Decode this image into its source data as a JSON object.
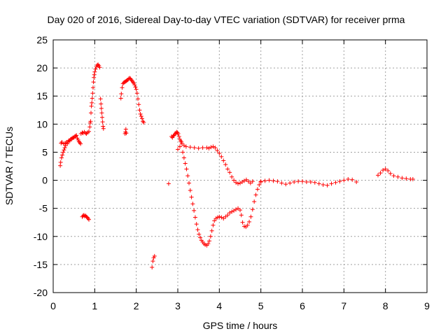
{
  "chart_data": {
    "type": "scatter",
    "title": "Day 020 of 2016, Sidereal Day-to-day VTEC variation (SDTVAR) for receiver prma",
    "xlabel": "GPS time / hours",
    "ylabel": "SDTVAR / TECUs",
    "xlim": [
      0,
      9
    ],
    "ylim": [
      -20,
      25
    ],
    "xticks": [
      0,
      1,
      2,
      3,
      4,
      5,
      6,
      7,
      8,
      9
    ],
    "yticks": [
      -20,
      -15,
      -10,
      -5,
      0,
      5,
      10,
      15,
      20,
      25
    ],
    "grid": true,
    "marker": "plus",
    "color": "#ff0000",
    "series": [
      {
        "points": [
          [
            0.17,
            2.6
          ],
          [
            0.18,
            3.2
          ],
          [
            0.19,
            6.6
          ],
          [
            0.2,
            4.0
          ],
          [
            0.21,
            6.8
          ],
          [
            0.22,
            4.5
          ],
          [
            0.24,
            5.0
          ],
          [
            0.25,
            6.5
          ],
          [
            0.26,
            5.4
          ],
          [
            0.28,
            5.8
          ],
          [
            0.29,
            6.6
          ],
          [
            0.3,
            6.2
          ],
          [
            0.32,
            6.8
          ],
          [
            0.34,
            6.5
          ],
          [
            0.36,
            6.9
          ],
          [
            0.38,
            7.1
          ],
          [
            0.4,
            7.0
          ],
          [
            0.42,
            7.3
          ],
          [
            0.44,
            7.4
          ],
          [
            0.46,
            7.5
          ],
          [
            0.48,
            7.6
          ],
          [
            0.5,
            7.6
          ],
          [
            0.52,
            7.8
          ],
          [
            0.54,
            7.9
          ],
          [
            0.56,
            8.0
          ],
          [
            0.58,
            7.5
          ],
          [
            0.6,
            7.2
          ],
          [
            0.62,
            6.9
          ],
          [
            0.64,
            6.7
          ],
          [
            0.66,
            6.5
          ],
          [
            0.67,
            8.3
          ],
          [
            0.7,
            8.5
          ],
          [
            0.72,
            8.4
          ],
          [
            0.75,
            8.6
          ],
          [
            0.78,
            8.4
          ],
          [
            0.8,
            8.3
          ],
          [
            0.83,
            8.5
          ],
          [
            0.86,
            8.7
          ],
          [
            0.7,
            -6.5
          ],
          [
            0.72,
            -6.3
          ],
          [
            0.74,
            -6.2
          ],
          [
            0.76,
            -6.4
          ],
          [
            0.78,
            -6.3
          ],
          [
            0.8,
            -6.5
          ],
          [
            0.82,
            -6.6
          ],
          [
            0.84,
            -6.8
          ],
          [
            0.86,
            -7.0
          ],
          [
            0.88,
            9.5
          ],
          [
            0.89,
            10.2
          ],
          [
            0.9,
            10.5
          ],
          [
            0.91,
            12.0
          ],
          [
            0.92,
            13.2
          ],
          [
            0.93,
            13.8
          ],
          [
            0.94,
            14.6
          ],
          [
            0.95,
            15.5
          ],
          [
            0.96,
            16.5
          ],
          [
            0.97,
            17.5
          ],
          [
            0.98,
            18.3
          ],
          [
            0.99,
            18.8
          ],
          [
            1.0,
            19.3
          ],
          [
            1.02,
            19.8
          ],
          [
            1.04,
            20.2
          ],
          [
            1.06,
            20.5
          ],
          [
            1.08,
            20.6
          ],
          [
            1.1,
            20.4
          ],
          [
            1.12,
            20.1
          ],
          [
            1.14,
            14.5
          ],
          [
            1.15,
            13.6
          ],
          [
            1.16,
            12.8
          ],
          [
            1.17,
            12.0
          ],
          [
            1.18,
            11.2
          ],
          [
            1.19,
            10.4
          ],
          [
            1.2,
            9.6
          ],
          [
            1.21,
            9.2
          ],
          [
            1.63,
            14.6
          ],
          [
            1.64,
            15.4
          ],
          [
            1.66,
            16.5
          ],
          [
            1.68,
            17.2
          ],
          [
            1.7,
            17.4
          ],
          [
            1.72,
            17.5
          ],
          [
            1.74,
            17.6
          ],
          [
            1.76,
            17.7
          ],
          [
            1.78,
            17.8
          ],
          [
            1.8,
            17.9
          ],
          [
            1.82,
            18.1
          ],
          [
            1.84,
            18.2
          ],
          [
            1.86,
            18.1
          ],
          [
            1.88,
            17.9
          ],
          [
            1.9,
            17.7
          ],
          [
            1.92,
            17.5
          ],
          [
            1.94,
            17.3
          ],
          [
            1.96,
            17.0
          ],
          [
            1.98,
            16.6
          ],
          [
            2.0,
            16.2
          ],
          [
            2.02,
            15.5
          ],
          [
            2.04,
            14.5
          ],
          [
            2.06,
            13.5
          ],
          [
            2.08,
            12.5
          ],
          [
            2.1,
            11.8
          ],
          [
            2.12,
            11.4
          ],
          [
            2.14,
            11.0
          ],
          [
            2.16,
            10.5
          ],
          [
            2.18,
            10.3
          ],
          [
            1.73,
            8.3
          ],
          [
            1.74,
            8.6
          ],
          [
            1.75,
            9.1
          ],
          [
            1.76,
            8.4
          ],
          [
            2.38,
            -15.5
          ],
          [
            2.4,
            -14.4
          ],
          [
            2.42,
            -13.8
          ],
          [
            2.44,
            -13.5
          ],
          [
            2.78,
            -0.6
          ],
          [
            2.85,
            7.8
          ],
          [
            2.87,
            7.6
          ],
          [
            2.89,
            7.9
          ],
          [
            2.91,
            8.0
          ],
          [
            2.93,
            8.2
          ],
          [
            2.95,
            8.4
          ],
          [
            2.97,
            8.6
          ],
          [
            2.99,
            8.5
          ],
          [
            3.01,
            8.3
          ],
          [
            3.03,
            7.8
          ],
          [
            3.05,
            7.3
          ],
          [
            3.07,
            7.0
          ],
          [
            3.09,
            6.8
          ],
          [
            3.0,
            5.5
          ],
          [
            3.05,
            6.0
          ],
          [
            3.1,
            6.5
          ],
          [
            3.15,
            6.2
          ],
          [
            3.2,
            6.0
          ],
          [
            3.3,
            5.9
          ],
          [
            3.4,
            5.8
          ],
          [
            3.5,
            5.7
          ],
          [
            3.6,
            5.8
          ],
          [
            3.7,
            5.8
          ],
          [
            3.75,
            5.7
          ],
          [
            3.8,
            5.9
          ],
          [
            3.85,
            6.0
          ],
          [
            3.9,
            5.8
          ],
          [
            3.95,
            5.3
          ],
          [
            4.0,
            4.8
          ],
          [
            4.05,
            4.2
          ],
          [
            4.1,
            3.5
          ],
          [
            4.15,
            2.8
          ],
          [
            4.2,
            2.0
          ],
          [
            4.25,
            1.4
          ],
          [
            4.3,
            0.6
          ],
          [
            4.35,
            0.0
          ],
          [
            4.4,
            -0.4
          ],
          [
            4.45,
            -0.6
          ],
          [
            4.5,
            -0.5
          ],
          [
            4.55,
            -0.3
          ],
          [
            4.6,
            -0.1
          ],
          [
            4.65,
            0.1
          ],
          [
            4.7,
            -0.2
          ],
          [
            4.75,
            -0.5
          ],
          [
            4.8,
            -0.2
          ],
          [
            3.12,
            5.0
          ],
          [
            3.15,
            4.0
          ],
          [
            3.18,
            3.0
          ],
          [
            3.21,
            2.0
          ],
          [
            3.24,
            0.8
          ],
          [
            3.27,
            -0.5
          ],
          [
            3.3,
            -1.8
          ],
          [
            3.33,
            -3.0
          ],
          [
            3.36,
            -4.2
          ],
          [
            3.39,
            -5.4
          ],
          [
            3.42,
            -6.6
          ],
          [
            3.45,
            -7.8
          ],
          [
            3.48,
            -8.8
          ],
          [
            3.51,
            -9.6
          ],
          [
            3.54,
            -10.2
          ],
          [
            3.57,
            -10.7
          ],
          [
            3.6,
            -11.0
          ],
          [
            3.63,
            -11.3
          ],
          [
            3.66,
            -11.5
          ],
          [
            3.7,
            -11.6
          ],
          [
            3.73,
            -11.3
          ],
          [
            3.76,
            -10.8
          ],
          [
            3.79,
            -10.0
          ],
          [
            3.82,
            -9.0
          ],
          [
            3.85,
            -8.0
          ],
          [
            3.88,
            -7.2
          ],
          [
            3.92,
            -6.8
          ],
          [
            3.96,
            -6.6
          ],
          [
            4.0,
            -6.5
          ],
          [
            4.05,
            -6.6
          ],
          [
            4.1,
            -6.8
          ],
          [
            4.15,
            -6.5
          ],
          [
            4.2,
            -6.2
          ],
          [
            4.25,
            -5.8
          ],
          [
            4.3,
            -5.6
          ],
          [
            4.35,
            -5.4
          ],
          [
            4.4,
            -5.2
          ],
          [
            4.45,
            -5.0
          ],
          [
            4.5,
            -5.3
          ],
          [
            4.53,
            -6.2
          ],
          [
            4.56,
            -7.5
          ],
          [
            4.6,
            -8.2
          ],
          [
            4.64,
            -8.3
          ],
          [
            4.68,
            -8.0
          ],
          [
            4.72,
            -7.4
          ],
          [
            4.76,
            -6.5
          ],
          [
            4.8,
            -5.2
          ],
          [
            4.84,
            -3.8
          ],
          [
            4.88,
            -2.6
          ],
          [
            4.92,
            -1.6
          ],
          [
            4.96,
            -0.8
          ],
          [
            5.0,
            -0.3
          ],
          [
            5.0,
            -0.2
          ],
          [
            5.1,
            -0.1
          ],
          [
            5.2,
            0.0
          ],
          [
            5.3,
            -0.1
          ],
          [
            5.4,
            -0.2
          ],
          [
            5.5,
            -0.5
          ],
          [
            5.6,
            -0.7
          ],
          [
            5.7,
            -0.5
          ],
          [
            5.8,
            -0.3
          ],
          [
            5.9,
            -0.2
          ],
          [
            6.0,
            -0.2
          ],
          [
            6.1,
            -0.3
          ],
          [
            6.2,
            -0.3
          ],
          [
            6.3,
            -0.4
          ],
          [
            6.4,
            -0.6
          ],
          [
            6.5,
            -0.8
          ],
          [
            6.6,
            -0.9
          ],
          [
            6.7,
            -0.6
          ],
          [
            6.8,
            -0.4
          ],
          [
            6.9,
            -0.2
          ],
          [
            7.0,
            0.0
          ],
          [
            7.1,
            0.2
          ],
          [
            7.2,
            0.1
          ],
          [
            7.3,
            -0.3
          ],
          [
            7.82,
            0.9
          ],
          [
            7.88,
            1.3
          ],
          [
            7.94,
            1.8
          ],
          [
            8.0,
            2.0
          ],
          [
            8.06,
            1.7
          ],
          [
            8.12,
            1.2
          ],
          [
            8.2,
            0.8
          ],
          [
            8.3,
            0.6
          ],
          [
            8.4,
            0.4
          ],
          [
            8.5,
            0.3
          ],
          [
            8.6,
            0.2
          ],
          [
            8.66,
            0.2
          ]
        ]
      }
    ]
  }
}
